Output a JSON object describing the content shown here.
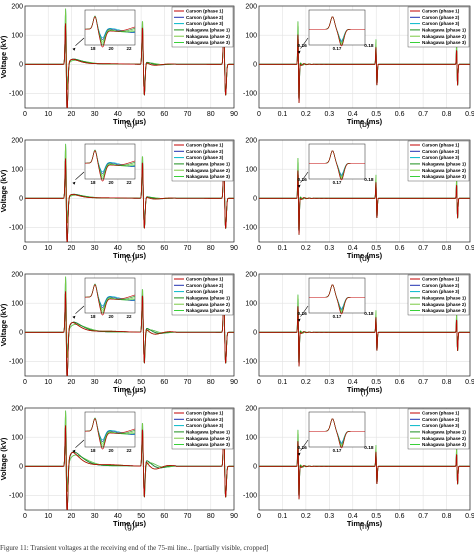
{
  "figure": {
    "caption_letters": [
      "(a)",
      "(b)",
      "(c)",
      "(d)",
      "(e)",
      "(f)",
      "(g)",
      "(h)"
    ],
    "footer_text": "Figure 11: Transient voltages at the receiving end of the 75-mi line... [partially visible, cropped]",
    "colors": {
      "carson_phase1": "#c00000",
      "carson_phase2": "#1f2fb0",
      "carson_phase3": "#00b8c8",
      "nakagawa_phase1": "#1a8f1a",
      "nakagawa_phase2": "#7ac943",
      "nakagawa_phase3": "#39d039"
    }
  },
  "chart_data": [
    {
      "panel": "a",
      "type": "line",
      "xlabel": "Time (µs)",
      "ylabel": "Voltage (kV)",
      "xlim": [
        0,
        90
      ],
      "ylim": [
        -150,
        200
      ],
      "xticks": [
        "0",
        "10",
        "20",
        "30",
        "40",
        "50",
        "60",
        "70",
        "80",
        "90"
      ],
      "yticks": [
        "200",
        "100",
        "0",
        "-100"
      ],
      "legend": [
        "Carson (phase 1)",
        "Carson (phase 2)",
        "Carson (phase 3)",
        "Nakagawa (phase 1)",
        "Nakagawa (phase 2)",
        "Nakagawa (phase 3)"
      ],
      "inset_xticks": [
        "18",
        "20",
        "22"
      ],
      "series": [
        {
          "name": "Carson (phase 1)",
          "x": [
            0,
            16.5,
            17.5,
            18,
            18.5,
            19,
            20,
            22,
            25,
            30,
            40,
            49.5,
            50.5,
            51.5,
            60,
            84.5,
            85.5,
            86.5,
            90
          ],
          "y": [
            0,
            0,
            195,
            -60,
            80,
            40,
            5,
            15,
            25,
            18,
            2,
            0,
            155,
            -100,
            0,
            0,
            160,
            -90,
            0
          ]
        }
      ]
    },
    {
      "panel": "b",
      "type": "line",
      "xlabel": "Time (ms)",
      "xlim": [
        0,
        0.9
      ],
      "ylim": [
        -150,
        200
      ],
      "xticks": [
        "0",
        "0.1",
        "0.2",
        "0.3",
        "0.4",
        "0.5",
        "0.6",
        "0.7",
        "0.8",
        "0.9"
      ],
      "yticks": [
        "200",
        "100",
        "0",
        "-100"
      ],
      "legend": [
        "Carson (phase 1)",
        "Carson (phase 2)",
        "Carson (phase 3)",
        "Nakagawa (phase 1)",
        "Nakagawa (phase 2)",
        "Nakagawa (phase 3)"
      ],
      "inset_xticks": [
        "0.17"
      ],
      "annotations": [
        "0.16",
        "0.18"
      ],
      "series": [
        {
          "name": "Carson (phase 1)",
          "x": [
            0,
            0.165,
            0.168,
            0.172,
            0.2,
            0.495,
            0.5,
            0.505,
            0.84,
            0.845,
            0.85,
            0.9
          ],
          "y": [
            0,
            0,
            165,
            -140,
            5,
            0,
            90,
            -60,
            0,
            70,
            -50,
            0
          ]
        }
      ]
    },
    {
      "panel": "c",
      "type": "line",
      "xlabel": "Time (µs)",
      "ylabel": "Voltage (kV)",
      "xlim": [
        0,
        90
      ],
      "ylim": [
        -150,
        200
      ],
      "xticks": [
        "0",
        "10",
        "20",
        "30",
        "40",
        "50",
        "60",
        "70",
        "80",
        "90"
      ],
      "yticks": [
        "200",
        "100",
        "0",
        "-100"
      ],
      "legend": [
        "Carson (phase 1)",
        "Carson (phase 2)",
        "Carson (phase 3)",
        "Nakagawa (phase 1)",
        "Nakagawa (phase 2)",
        "Nakagawa (phase 3)"
      ],
      "inset_xticks": [
        "18",
        "20",
        "22"
      ],
      "series": [
        {
          "name": "Carson (phase 1)",
          "x": [
            0,
            16.5,
            17.5,
            18,
            18.5,
            19,
            20,
            22,
            25,
            30,
            40,
            49.5,
            50.5,
            51.5,
            60,
            84.5,
            85.5,
            86.5,
            90
          ],
          "y": [
            0,
            0,
            190,
            -70,
            70,
            35,
            5,
            12,
            20,
            12,
            2,
            0,
            150,
            -110,
            0,
            0,
            155,
            -100,
            0
          ]
        }
      ]
    },
    {
      "panel": "d",
      "type": "line",
      "xlabel": "Time (ms)",
      "xlim": [
        0,
        0.9
      ],
      "ylim": [
        -150,
        200
      ],
      "xticks": [
        "0",
        "0.1",
        "0.2",
        "0.3",
        "0.4",
        "0.5",
        "0.6",
        "0.7",
        "0.8",
        "0.9"
      ],
      "yticks": [
        "200",
        "100",
        "0",
        "-100"
      ],
      "legend": [
        "Carson (phase 1)",
        "Carson (phase 2)",
        "Carson (phase 3)",
        "Nakagawa (phase 1)",
        "Nakagawa (phase 2)",
        "Nakagawa (phase 3)"
      ],
      "inset_xticks": [
        "0.17"
      ],
      "annotations": [
        "0.16",
        "0.18"
      ],
      "series": [
        {
          "name": "Carson (phase 1)",
          "x": [
            0,
            0.165,
            0.168,
            0.172,
            0.2,
            0.495,
            0.5,
            0.505,
            0.84,
            0.845,
            0.85,
            0.9
          ],
          "y": [
            0,
            0,
            155,
            -130,
            5,
            0,
            80,
            -60,
            0,
            65,
            -50,
            0
          ]
        }
      ]
    },
    {
      "panel": "e",
      "type": "line",
      "xlabel": "Time (µs)",
      "ylabel": "Voltage (kV)",
      "xlim": [
        0,
        90
      ],
      "ylim": [
        -150,
        200
      ],
      "xticks": [
        "0",
        "10",
        "20",
        "30",
        "40",
        "50",
        "60",
        "70",
        "80",
        "90"
      ],
      "yticks": [
        "200",
        "100",
        "0",
        "-100"
      ],
      "legend": [
        "Carson (phase 1)",
        "Carson (phase 2)",
        "Carson (phase 3)",
        "Nakagawa (phase 1)",
        "Nakagawa (phase 2)",
        "Nakagawa (phase 3)"
      ],
      "inset_xticks": [
        "18",
        "20",
        "22"
      ],
      "series": [
        {
          "name": "Carson (phase 1)",
          "x": [
            0,
            16.5,
            17.5,
            18,
            18.5,
            19,
            20,
            22,
            25,
            30,
            40,
            49.5,
            50.5,
            51.5,
            60,
            84.5,
            85.5,
            86.5,
            90
          ],
          "y": [
            0,
            0,
            195,
            -90,
            60,
            30,
            10,
            30,
            40,
            25,
            5,
            0,
            150,
            -110,
            0,
            0,
            155,
            -110,
            0
          ]
        }
      ]
    },
    {
      "panel": "f",
      "type": "line",
      "xlabel": "Time (ms)",
      "xlim": [
        0,
        0.9
      ],
      "ylim": [
        -150,
        200
      ],
      "xticks": [
        "0",
        "0.1",
        "0.2",
        "0.3",
        "0.4",
        "0.5",
        "0.6",
        "0.7",
        "0.8",
        "0.9"
      ],
      "yticks": [
        "200",
        "100",
        "0",
        "-100"
      ],
      "legend": [
        "Carson (phase 1)",
        "Carson (phase 2)",
        "Carson (phase 3)",
        "Nakagawa (phase 1)",
        "Nakagawa (phase 2)",
        "Nakagawa (phase 3)"
      ],
      "inset_xticks": [
        "0.17"
      ],
      "annotations": [
        "0.16",
        "0.18"
      ],
      "series": [
        {
          "name": "Carson (phase 1)",
          "x": [
            0,
            0.165,
            0.168,
            0.172,
            0.2,
            0.495,
            0.5,
            0.505,
            0.84,
            0.845,
            0.85,
            0.9
          ],
          "y": [
            0,
            0,
            145,
            -120,
            10,
            0,
            75,
            -55,
            0,
            60,
            -50,
            0
          ]
        }
      ]
    },
    {
      "panel": "g",
      "type": "line",
      "xlabel": "Time (µs)",
      "ylabel": "Voltage (kV)",
      "xlim": [
        0,
        90
      ],
      "ylim": [
        -150,
        200
      ],
      "xticks": [
        "0",
        "10",
        "20",
        "30",
        "40",
        "50",
        "60",
        "70",
        "80",
        "90"
      ],
      "yticks": [
        "200",
        "100",
        "0",
        "-100"
      ],
      "legend": [
        "Carson (phase 1)",
        "Carson (phase 2)",
        "Carson (phase 3)",
        "Nakagawa (phase 1)",
        "Nakagawa (phase 2)",
        "Nakagawa (phase 3)"
      ],
      "inset_xticks": [
        "18",
        "20",
        "22"
      ],
      "series": [
        {
          "name": "Carson (phase 1)",
          "x": [
            0,
            16.5,
            17.5,
            18,
            18.5,
            19,
            20,
            22,
            25,
            30,
            40,
            49.5,
            50.5,
            51.5,
            60,
            84.5,
            85.5,
            86.5,
            90
          ],
          "y": [
            0,
            0,
            195,
            -100,
            55,
            30,
            15,
            45,
            60,
            35,
            10,
            0,
            150,
            -120,
            0,
            0,
            155,
            -120,
            0
          ]
        }
      ]
    },
    {
      "panel": "h",
      "type": "line",
      "xlabel": "Time (ms)",
      "xlim": [
        0,
        0.9
      ],
      "ylim": [
        -150,
        200
      ],
      "xticks": [
        "0",
        "0.1",
        "0.2",
        "0.3",
        "0.4",
        "0.5",
        "0.6",
        "0.7",
        "0.8",
        "0.9"
      ],
      "yticks": [
        "200",
        "100",
        "0",
        "-100"
      ],
      "legend": [
        "Carson (phase 1)",
        "Carson (phase 2)",
        "Carson (phase 3)",
        "Nakagawa (phase 1)",
        "Nakagawa (phase 2)",
        "Nakagawa (phase 3)"
      ],
      "inset_xticks": [
        "0.17"
      ],
      "annotations": [
        "0.16",
        "0.18"
      ],
      "series": [
        {
          "name": "Carson (phase 1)",
          "x": [
            0,
            0.165,
            0.168,
            0.172,
            0.2,
            0.495,
            0.5,
            0.505,
            0.84,
            0.845,
            0.85,
            0.9
          ],
          "y": [
            0,
            0,
            140,
            -120,
            10,
            0,
            70,
            -55,
            0,
            60,
            -50,
            0
          ]
        }
      ]
    }
  ]
}
